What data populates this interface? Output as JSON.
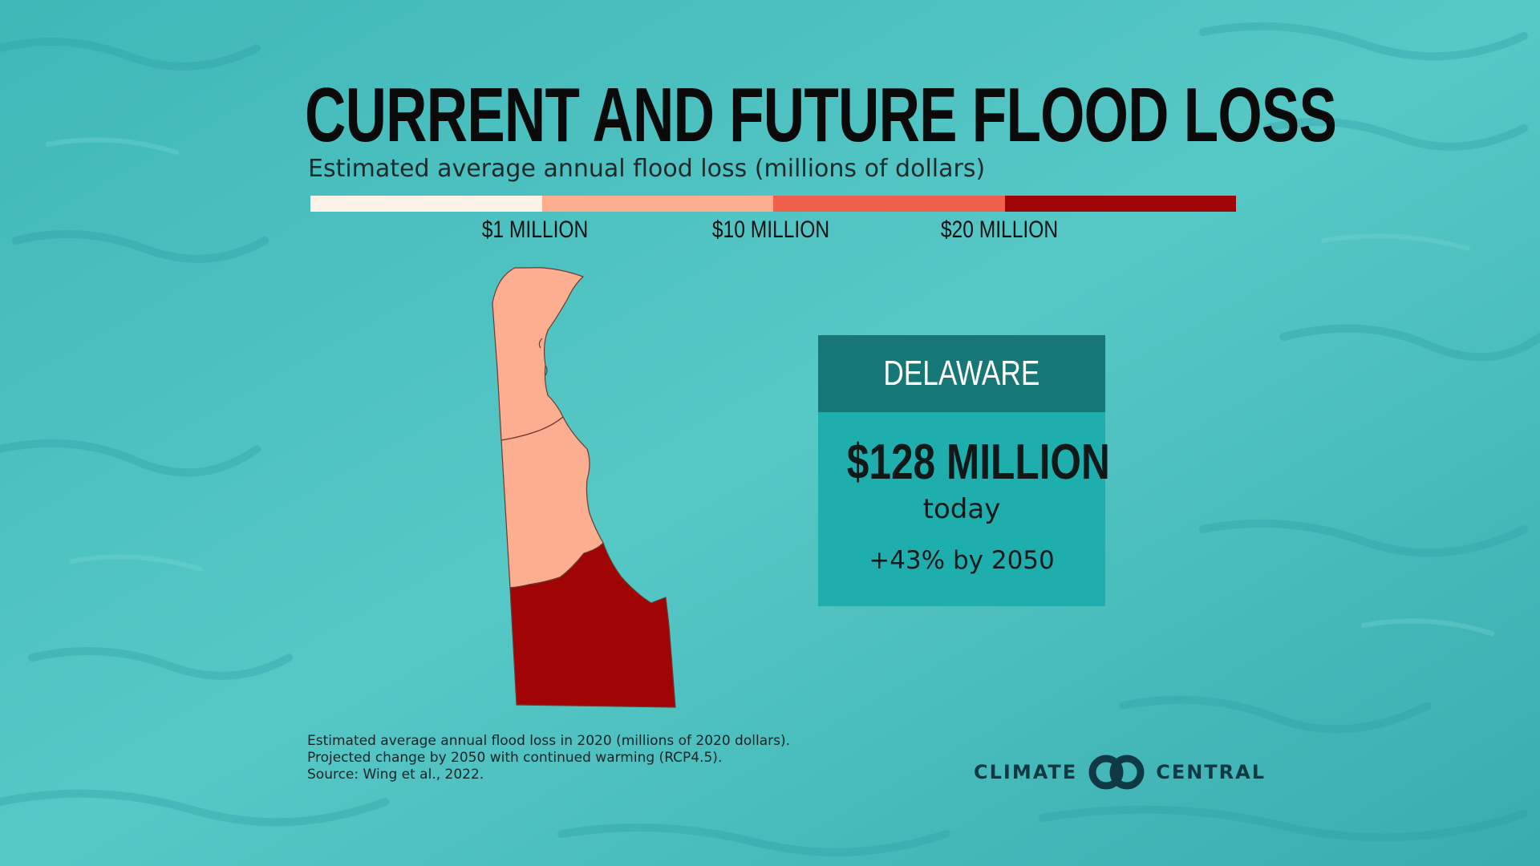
{
  "title": "CURRENT AND FUTURE FLOOD LOSS",
  "subtitle": "Estimated average annual flood loss (millions of dollars)",
  "legend": {
    "colors": [
      "#fbf1e6",
      "#fdae91",
      "#ef5f4a",
      "#a00405"
    ],
    "ticks": [
      "$1 MILLION",
      "$10 MILLION",
      "$20 MILLION"
    ]
  },
  "map": {
    "region": "Delaware",
    "counties": [
      {
        "name": "New Castle",
        "color": "#fdae91"
      },
      {
        "name": "Kent",
        "color": "#fdae91"
      },
      {
        "name": "Sussex",
        "color": "#a00405"
      }
    ]
  },
  "card": {
    "state": "DELAWARE",
    "amount": "$128 MILLION",
    "amount_note": "today",
    "change": "+43% by 2050",
    "header_color": "#177777",
    "body_color": "#1eaeae"
  },
  "notes": [
    "Estimated average annual flood loss in 2020 (millions of 2020 dollars).",
    "Projected change by 2050 with continued warming (RCP4.5).",
    "Source: Wing et al., 2022."
  ],
  "logo": {
    "left": "CLIMATE",
    "right": "CENTRAL",
    "icon": "interlocking-rings-icon"
  },
  "background": {
    "texture": "water-surface",
    "color": "#4fc5c5"
  }
}
